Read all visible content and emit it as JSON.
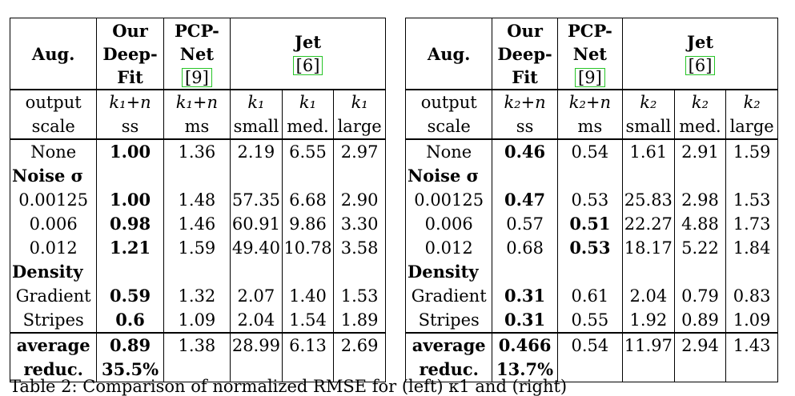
{
  "left": {
    "header": {
      "aug": "Aug.",
      "ours_l1": "Our",
      "ours_l2": "Deep-",
      "ours_l3": "Fit",
      "pcp_l1": "PCP-",
      "pcp_l2": "Net",
      "pcp_cite": "9",
      "jet_l1": "Jet",
      "jet_cite": "6"
    },
    "sub1": [
      "output",
      "k₁+n",
      "k₁+n",
      "k₁",
      "k₁",
      "k₁"
    ],
    "sub2": [
      "scale",
      "ss",
      "ms",
      "small",
      "med.",
      "large"
    ],
    "rows": [
      {
        "label": "None",
        "ours": "1.00",
        "pcp": "1.36",
        "small": "2.19",
        "med": "6.55",
        "large": "2.97"
      },
      {
        "label": "Noise σ"
      },
      {
        "label": "0.00125",
        "ours": "1.00",
        "pcp": "1.48",
        "small": "57.35",
        "med": "6.68",
        "large": "2.90"
      },
      {
        "label": "0.006",
        "ours": "0.98",
        "pcp": "1.46",
        "small": "60.91",
        "med": "9.86",
        "large": "3.30"
      },
      {
        "label": "0.012",
        "ours": "1.21",
        "pcp": "1.59",
        "small": "49.40",
        "med": "10.78",
        "large": "3.58"
      },
      {
        "label": "Density"
      },
      {
        "label": "Gradient",
        "ours": "0.59",
        "pcp": "1.32",
        "small": "2.07",
        "med": "1.40",
        "large": "1.53"
      },
      {
        "label": "Stripes",
        "ours": "0.6",
        "pcp": "1.09",
        "small": "2.04",
        "med": "1.54",
        "large": "1.89"
      }
    ],
    "average": {
      "label": "average",
      "ours": "0.89",
      "pcp": "1.38",
      "small": "28.99",
      "med": "6.13",
      "large": "2.69"
    },
    "reduc": {
      "label": "reduc.",
      "ours": "35.5%"
    }
  },
  "right": {
    "header": {
      "aug": "Aug.",
      "ours_l1": "Our",
      "ours_l2": "Deep-",
      "ours_l3": "Fit",
      "pcp_l1": "PCP-",
      "pcp_l2": "Net",
      "pcp_cite": "9",
      "jet_l1": "Jet",
      "jet_cite": "6"
    },
    "sub1": [
      "output",
      "k₂+n",
      "k₂+n",
      "k₂",
      "k₂",
      "k₂"
    ],
    "sub2": [
      "scale",
      "ss",
      "ms",
      "small",
      "med.",
      "large"
    ],
    "rows": [
      {
        "label": "None",
        "ours": "0.46",
        "pcp": "0.54",
        "small": "1.61",
        "med": "2.91",
        "large": "1.59"
      },
      {
        "label": "Noise σ"
      },
      {
        "label": "0.00125",
        "ours": "0.47",
        "pcp": "0.53",
        "small": "25.83",
        "med": "2.98",
        "large": "1.53"
      },
      {
        "label": "0.006",
        "ours": "0.57",
        "pcp": "0.51",
        "small": "22.27",
        "med": "4.88",
        "large": "1.73"
      },
      {
        "label": "0.012",
        "ours": "0.68",
        "pcp": "0.53",
        "small": "18.17",
        "med": "5.22",
        "large": "1.84"
      },
      {
        "label": "Density"
      },
      {
        "label": "Gradient",
        "ours": "0.31",
        "pcp": "0.61",
        "small": "2.04",
        "med": "0.79",
        "large": "0.83"
      },
      {
        "label": "Stripes",
        "ours": "0.31",
        "pcp": "0.55",
        "small": "1.92",
        "med": "0.89",
        "large": "1.09"
      }
    ],
    "average": {
      "label": "average",
      "ours": "0.466",
      "pcp": "0.54",
      "small": "11.97",
      "med": "2.94",
      "large": "1.43"
    },
    "reduc": {
      "label": "reduc.",
      "ours": "13.7%"
    }
  },
  "caption": "Table 2: Comparison of normalized RMSE for (left) κ1 and (right)"
}
